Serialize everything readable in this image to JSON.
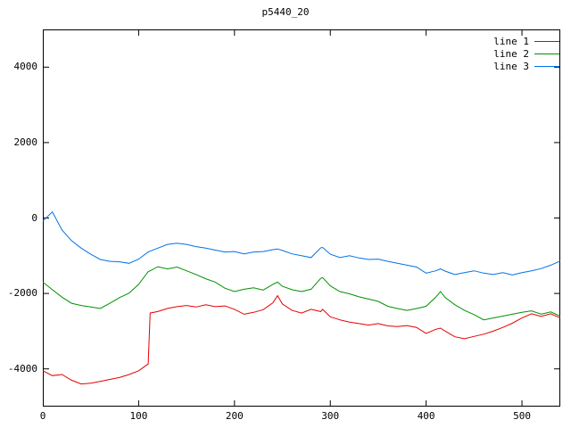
{
  "chart_data": {
    "type": "line",
    "title": "p5440_20",
    "xlabel": "",
    "ylabel": "",
    "xlim": [
      0,
      540
    ],
    "ylim": [
      -5000,
      5000
    ],
    "x_ticks": [
      0,
      100,
      200,
      300,
      400,
      500
    ],
    "y_ticks": [
      -4000,
      -2000,
      0,
      2000,
      4000
    ],
    "grid": false,
    "legend_position": "top-right-inside",
    "x": [
      0,
      10,
      20,
      30,
      40,
      50,
      60,
      70,
      80,
      90,
      100,
      110,
      112,
      120,
      130,
      140,
      150,
      160,
      170,
      180,
      190,
      200,
      210,
      220,
      230,
      240,
      245,
      250,
      260,
      270,
      280,
      290,
      292,
      300,
      310,
      320,
      330,
      340,
      350,
      360,
      370,
      380,
      390,
      400,
      410,
      415,
      420,
      430,
      440,
      450,
      460,
      470,
      480,
      490,
      500,
      510,
      520,
      530,
      540
    ],
    "series": [
      {
        "name": "line 1",
        "color": "#e60000",
        "values": [
          -4050,
          -4180,
          -4150,
          -4300,
          -4400,
          -4380,
          -4330,
          -4280,
          -4230,
          -4150,
          -4050,
          -3870,
          -2520,
          -2480,
          -2400,
          -2350,
          -2320,
          -2360,
          -2300,
          -2350,
          -2330,
          -2420,
          -2550,
          -2500,
          -2430,
          -2250,
          -2060,
          -2280,
          -2450,
          -2520,
          -2420,
          -2480,
          -2420,
          -2620,
          -2700,
          -2760,
          -2800,
          -2840,
          -2800,
          -2860,
          -2880,
          -2850,
          -2900,
          -3060,
          -2950,
          -2920,
          -3000,
          -3150,
          -3200,
          -3140,
          -3080,
          -3000,
          -2900,
          -2790,
          -2650,
          -2540,
          -2610,
          -2540,
          -2650
        ]
      },
      {
        "name": "line 2",
        "color": "#009100",
        "values": [
          -1700,
          -1900,
          -2100,
          -2260,
          -2320,
          -2360,
          -2400,
          -2260,
          -2110,
          -1990,
          -1760,
          -1420,
          -1400,
          -1290,
          -1350,
          -1300,
          -1400,
          -1500,
          -1610,
          -1700,
          -1860,
          -1950,
          -1890,
          -1850,
          -1910,
          -1760,
          -1700,
          -1810,
          -1900,
          -1950,
          -1890,
          -1600,
          -1580,
          -1800,
          -1950,
          -2010,
          -2090,
          -2150,
          -2210,
          -2340,
          -2400,
          -2450,
          -2400,
          -2340,
          -2100,
          -1950,
          -2110,
          -2300,
          -2450,
          -2560,
          -2700,
          -2650,
          -2600,
          -2550,
          -2500,
          -2460,
          -2550,
          -2490,
          -2600
        ]
      },
      {
        "name": "line 3",
        "color": "#0072e6",
        "values": [
          -80,
          160,
          -320,
          -600,
          -800,
          -960,
          -1100,
          -1150,
          -1160,
          -1200,
          -1090,
          -900,
          -880,
          -800,
          -700,
          -670,
          -700,
          -760,
          -800,
          -850,
          -900,
          -890,
          -950,
          -900,
          -890,
          -840,
          -820,
          -860,
          -950,
          -1000,
          -1050,
          -790,
          -780,
          -960,
          -1050,
          -1000,
          -1060,
          -1100,
          -1090,
          -1150,
          -1200,
          -1250,
          -1300,
          -1460,
          -1400,
          -1350,
          -1410,
          -1500,
          -1450,
          -1400,
          -1460,
          -1500,
          -1450,
          -1510,
          -1450,
          -1400,
          -1340,
          -1250,
          -1140
        ]
      }
    ]
  },
  "colors": {
    "background": "#ffffff",
    "border": "#000000",
    "text": "#000000"
  }
}
